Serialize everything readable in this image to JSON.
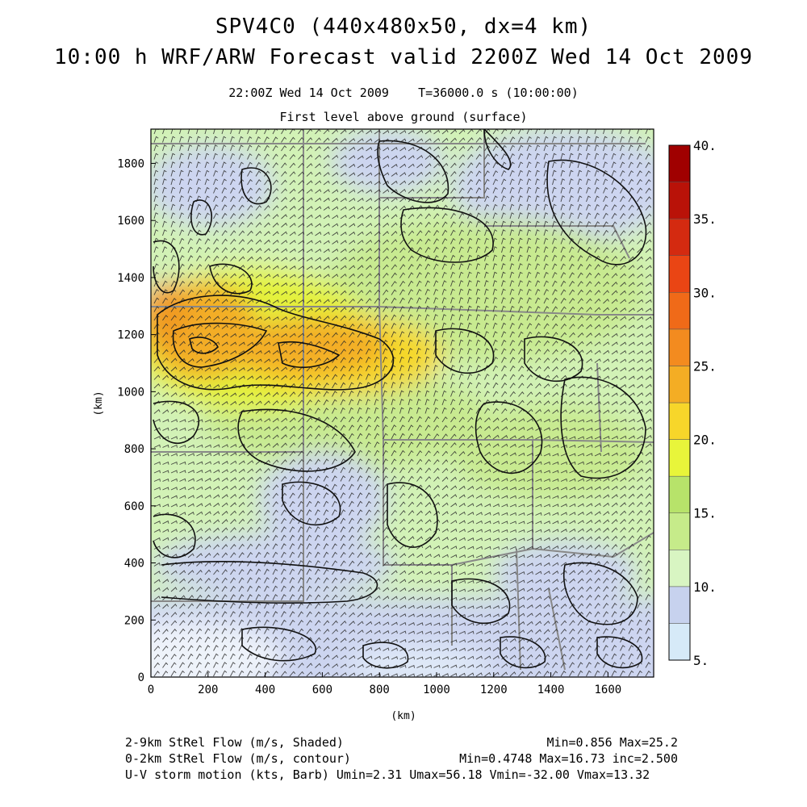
{
  "header": {
    "title_line1": "SPV4C0 (440x480x50, dx=4 km)",
    "title_line2": "10:00 h WRF/ARW Forecast valid 2200Z Wed 14 Oct 2009",
    "valid_time": "22:00Z Wed 14 Oct 2009",
    "sim_time": "T=36000.0 s (10:00:00)",
    "level": "First level above ground (surface)"
  },
  "axes": {
    "x_label": "(km)",
    "y_label": "(km)",
    "x_ticks": [
      "0",
      "200",
      "400",
      "600",
      "800",
      "1000",
      "1200",
      "1400",
      "1600"
    ],
    "y_ticks": [
      "0",
      "200",
      "400",
      "600",
      "800",
      "1000",
      "1200",
      "1400",
      "1600",
      "1800"
    ],
    "x_range": [
      0,
      1760
    ],
    "y_range": [
      0,
      1920
    ]
  },
  "colorbar": {
    "labels": [
      "5.",
      "10.",
      "15.",
      "20.",
      "25.",
      "30.",
      "35.",
      "40."
    ],
    "colors": [
      "#d6eaf8",
      "#c7d2ee",
      "#d8f5c2",
      "#c6eb8a",
      "#b7e36a",
      "#e8f53a",
      "#f7d62a",
      "#f4ad24",
      "#f38b1f",
      "#f06a18",
      "#ea4514",
      "#d42a10",
      "#b91208",
      "#a00000"
    ]
  },
  "footer": {
    "line1_left": "2-9km StRel Flow (m/s, Shaded)",
    "line1_right": "Min=0.856 Max=25.2",
    "line2_left": "0-2km StRel Flow (m/s, contour)",
    "line2_right": "Min=0.4748 Max=16.73 inc=2.500",
    "line3": "U-V storm motion (kts, Barb) Umin=2.31 Umax=56.18 Vmin=-32.00 Vmax=13.32"
  }
}
